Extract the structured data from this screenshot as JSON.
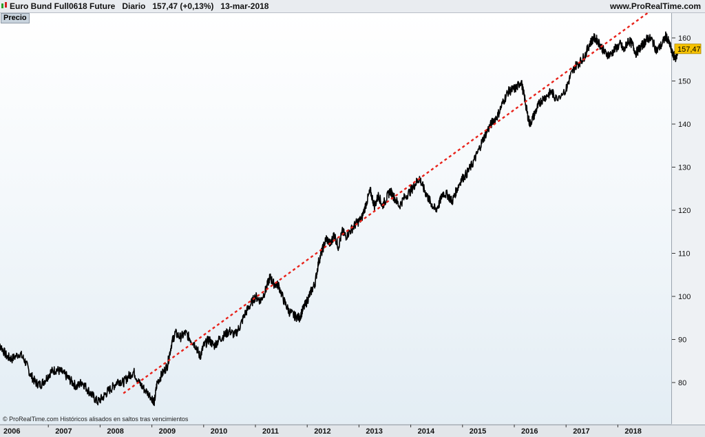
{
  "header": {
    "title": "Euro Bund Full0618 Future   Diario   157,47 (+0,13%)   13-mar-2018",
    "url": "www.ProRealTime.com"
  },
  "panel_label": "Precio",
  "footer_note": "© ProRealTime.com  Históricos alisados en saltos tras vencimientos",
  "last_price_label": "157,47",
  "colors": {
    "price_line": "#000000",
    "trend_line": "#e8221a",
    "price_badge": "#f6c200"
  },
  "chart_data": {
    "type": "line",
    "title": "Euro Bund Full0618 Future",
    "x_ticks": [
      "2006",
      "2007",
      "2008",
      "2009",
      "2010",
      "2011",
      "2012",
      "2013",
      "2014",
      "2015",
      "2016",
      "2017",
      "2018"
    ],
    "y_ticks": [
      80,
      90,
      100,
      110,
      120,
      130,
      140,
      150,
      160
    ],
    "ylim": [
      70,
      165
    ],
    "xlim": [
      2006.0,
      2018.6
    ],
    "grid": false,
    "last_value": 157.47,
    "series": [
      {
        "values": [
          [
            2006.0,
            88.0
          ],
          [
            2006.08,
            88.5
          ],
          [
            2006.2,
            86.0
          ],
          [
            2006.3,
            85.5
          ],
          [
            2006.45,
            86.8
          ],
          [
            2006.55,
            85.0
          ],
          [
            2006.65,
            82.0
          ],
          [
            2006.75,
            80.0
          ],
          [
            2006.85,
            79.5
          ],
          [
            2006.95,
            80.8
          ],
          [
            2007.05,
            82.5
          ],
          [
            2007.15,
            83.0
          ],
          [
            2007.25,
            82.5
          ],
          [
            2007.35,
            81.5
          ],
          [
            2007.45,
            80.2
          ],
          [
            2007.55,
            79.0
          ],
          [
            2007.65,
            80.2
          ],
          [
            2007.75,
            78.5
          ],
          [
            2007.85,
            77.0
          ],
          [
            2007.95,
            75.5
          ],
          [
            2008.05,
            76.5
          ],
          [
            2008.15,
            78.0
          ],
          [
            2008.25,
            79.0
          ],
          [
            2008.35,
            80.5
          ],
          [
            2008.45,
            80.0
          ],
          [
            2008.55,
            81.5
          ],
          [
            2008.65,
            82.5
          ],
          [
            2008.75,
            80.0
          ],
          [
            2008.85,
            78.5
          ],
          [
            2009.0,
            76.5
          ],
          [
            2009.05,
            75.5
          ],
          [
            2009.1,
            80.0
          ],
          [
            2009.2,
            82.0
          ],
          [
            2009.3,
            84.0
          ],
          [
            2009.38,
            89.0
          ],
          [
            2009.45,
            91.5
          ],
          [
            2009.55,
            90.5
          ],
          [
            2009.65,
            91.5
          ],
          [
            2009.75,
            90.0
          ],
          [
            2009.85,
            88.5
          ],
          [
            2009.93,
            86.0
          ],
          [
            2010.0,
            88.5
          ],
          [
            2010.1,
            90.0
          ],
          [
            2010.2,
            88.5
          ],
          [
            2010.3,
            90.0
          ],
          [
            2010.4,
            91.0
          ],
          [
            2010.5,
            92.0
          ],
          [
            2010.6,
            91.0
          ],
          [
            2010.7,
            93.0
          ],
          [
            2010.8,
            96.0
          ],
          [
            2010.9,
            98.0
          ],
          [
            2011.0,
            100.0
          ],
          [
            2011.1,
            99.0
          ],
          [
            2011.2,
            101.5
          ],
          [
            2011.28,
            104.5
          ],
          [
            2011.35,
            103.0
          ],
          [
            2011.45,
            102.5
          ],
          [
            2011.55,
            99.0
          ],
          [
            2011.65,
            96.5
          ],
          [
            2011.75,
            95.5
          ],
          [
            2011.85,
            95.0
          ],
          [
            2011.92,
            97.0
          ],
          [
            2012.0,
            99.0
          ],
          [
            2012.07,
            101.0
          ],
          [
            2012.15,
            103.0
          ],
          [
            2012.22,
            108.0
          ],
          [
            2012.3,
            111.0
          ],
          [
            2012.37,
            113.5
          ],
          [
            2012.45,
            112.0
          ],
          [
            2012.52,
            114.5
          ],
          [
            2012.6,
            111.5
          ],
          [
            2012.68,
            115.0
          ],
          [
            2012.75,
            114.0
          ],
          [
            2012.85,
            115.5
          ],
          [
            2012.95,
            117.0
          ],
          [
            2013.05,
            118.0
          ],
          [
            2013.15,
            122.0
          ],
          [
            2013.22,
            124.5
          ],
          [
            2013.3,
            121.0
          ],
          [
            2013.38,
            123.5
          ],
          [
            2013.45,
            121.0
          ],
          [
            2013.52,
            122.5
          ],
          [
            2013.6,
            124.5
          ],
          [
            2013.68,
            123.0
          ],
          [
            2013.78,
            121.0
          ],
          [
            2013.88,
            123.0
          ],
          [
            2014.0,
            124.5
          ],
          [
            2014.08,
            126.0
          ],
          [
            2014.17,
            127.5
          ],
          [
            2014.25,
            125.0
          ],
          [
            2014.33,
            123.0
          ],
          [
            2014.4,
            121.5
          ],
          [
            2014.48,
            120.0
          ],
          [
            2014.55,
            121.5
          ],
          [
            2014.62,
            124.0
          ],
          [
            2014.72,
            123.5
          ],
          [
            2014.8,
            122.0
          ],
          [
            2014.88,
            124.5
          ],
          [
            2014.97,
            127.0
          ],
          [
            2015.08,
            128.5
          ],
          [
            2015.18,
            130.5
          ],
          [
            2015.28,
            133.0
          ],
          [
            2015.38,
            136.0
          ],
          [
            2015.48,
            138.5
          ],
          [
            2015.58,
            140.5
          ],
          [
            2015.68,
            142.0
          ],
          [
            2015.78,
            145.0
          ],
          [
            2015.88,
            147.5
          ],
          [
            2015.97,
            148.0
          ],
          [
            2016.05,
            148.5
          ],
          [
            2016.13,
            150.0
          ],
          [
            2016.2,
            146.0
          ],
          [
            2016.25,
            142.5
          ],
          [
            2016.3,
            140.0
          ],
          [
            2016.38,
            142.0
          ],
          [
            2016.45,
            144.0
          ],
          [
            2016.52,
            145.5
          ],
          [
            2016.62,
            146.5
          ],
          [
            2016.72,
            147.5
          ],
          [
            2016.8,
            146.0
          ],
          [
            2017.0,
            148.0
          ],
          [
            2017.08,
            151.0
          ],
          [
            2017.18,
            153.5
          ],
          [
            2017.28,
            154.5
          ],
          [
            2017.37,
            156.0
          ],
          [
            2017.45,
            158.5
          ],
          [
            2017.53,
            160.0
          ],
          [
            2017.6,
            159.5
          ],
          [
            2017.68,
            158.0
          ],
          [
            2017.75,
            156.5
          ],
          [
            2017.85,
            156.0
          ],
          [
            2017.95,
            157.5
          ],
          [
            2018.05,
            158.5
          ],
          [
            2018.12,
            157.0
          ],
          [
            2018.2,
            159.5
          ],
          [
            2018.28,
            158.5
          ],
          [
            2018.35,
            156.5
          ],
          [
            2018.45,
            158.0
          ],
          [
            2018.52,
            159.0
          ],
          [
            2018.58,
            160.0
          ],
          [
            2018.66,
            159.5
          ],
          [
            2018.75,
            157.0
          ],
          [
            2018.85,
            158.5
          ],
          [
            2018.93,
            160.5
          ],
          [
            2019.0,
            158.5
          ],
          [
            2019.06,
            156.0
          ],
          [
            2019.12,
            155.5
          ],
          [
            2019.18,
            157.5
          ]
        ]
      }
    ],
    "trend_line": [
      [
        2008.45,
        77.5
      ],
      [
        2018.6,
        166.0
      ]
    ]
  }
}
